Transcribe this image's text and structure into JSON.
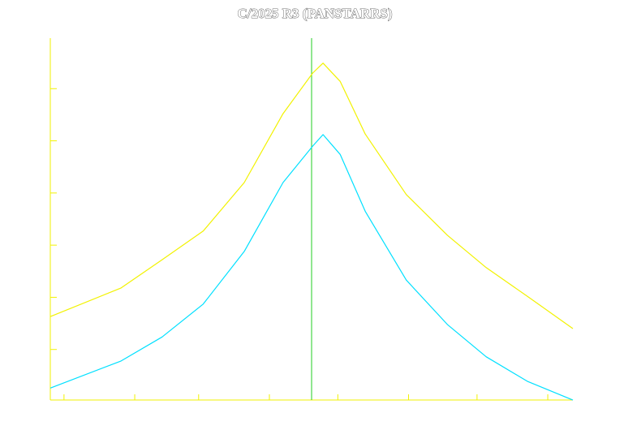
{
  "chart_data": {
    "type": "line",
    "title": "C/2025 R3 (PANSTARRS)",
    "x": [
      0,
      31,
      49,
      67,
      85,
      102,
      115,
      119.5,
      127,
      138,
      156,
      174,
      191,
      209,
      229
    ],
    "series": [
      {
        "color": "#f2f200",
        "values": [
          1.63,
          2.18,
          2.72,
          3.27,
          4.2,
          5.52,
          6.3,
          6.49,
          6.14,
          5.13,
          3.97,
          3.19,
          2.57,
          2.02,
          1.4
        ]
      },
      {
        "color": "#00e0ff",
        "values": [
          0.26,
          0.78,
          1.24,
          1.87,
          2.88,
          4.2,
          4.9,
          5.12,
          4.74,
          3.65,
          2.33,
          1.48,
          0.86,
          0.39,
          0.03
        ]
      }
    ],
    "xlim": [
      0,
      229
    ],
    "xticks": [
      6,
      37,
      65,
      96,
      126,
      157,
      187,
      218
    ],
    "ylim": [
      0,
      7
    ],
    "yticks": [
      1,
      2,
      3,
      4,
      5,
      6
    ],
    "axis_color": "#f2f200",
    "marker_x": 114.5,
    "marker_color": "#22cc22"
  }
}
